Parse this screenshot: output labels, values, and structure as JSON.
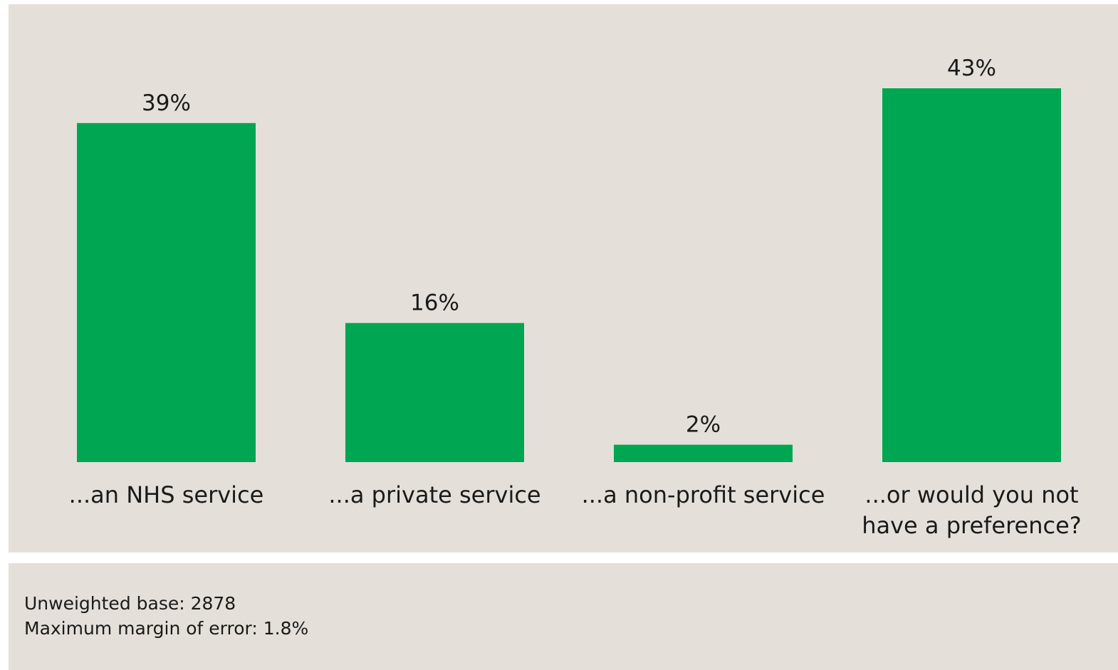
{
  "chart_data": {
    "type": "bar",
    "categories": [
      [
        "...an NHS service"
      ],
      [
        "...a private service"
      ],
      [
        "...a non-profit service"
      ],
      [
        "...or would you not",
        "have a preference?"
      ]
    ],
    "values": [
      39,
      16,
      2,
      43
    ],
    "value_labels": [
      "39%",
      "16%",
      "2%",
      "43%"
    ],
    "ylim": [
      0,
      43
    ],
    "bar_color": "#00a651",
    "grid": false,
    "legend": "none"
  },
  "footer": {
    "base": "Unweighted base: 2878",
    "margin": "Maximum margin of error: 1.8%"
  }
}
